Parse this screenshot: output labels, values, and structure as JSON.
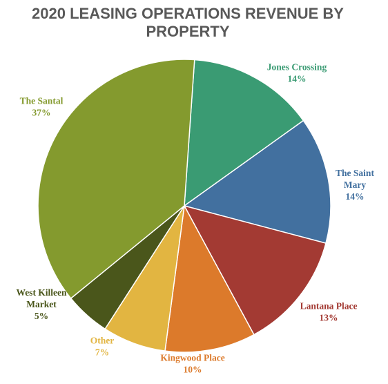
{
  "chart_data": {
    "type": "pie",
    "title_lines": [
      "2020 LEASING OPERATIONS REVENUE BY",
      "PROPERTY"
    ],
    "start_angle_deg": 4,
    "slices": [
      {
        "label_lines": [
          "Jones Crossing"
        ],
        "value_label": "14%",
        "value": 14,
        "color": "#3a9b73"
      },
      {
        "label_lines": [
          "The Saint",
          "Mary"
        ],
        "value_label": "14%",
        "value": 14,
        "color": "#42709f"
      },
      {
        "label_lines": [
          "Lantana Place"
        ],
        "value_label": "13%",
        "value": 13,
        "color": "#a33a33"
      },
      {
        "label_lines": [
          "Kingwood Place"
        ],
        "value_label": "10%",
        "value": 10,
        "color": "#dc7a2b"
      },
      {
        "label_lines": [
          "Other"
        ],
        "value_label": "7%",
        "value": 7,
        "color": "#e2b541"
      },
      {
        "label_lines": [
          "West Killeen",
          "Market"
        ],
        "value_label": "5%",
        "value": 5,
        "color": "#4a561b"
      },
      {
        "label_lines": [
          "The Santal"
        ],
        "value_label": "37%",
        "value": 37,
        "color": "#849a2e"
      }
    ]
  }
}
